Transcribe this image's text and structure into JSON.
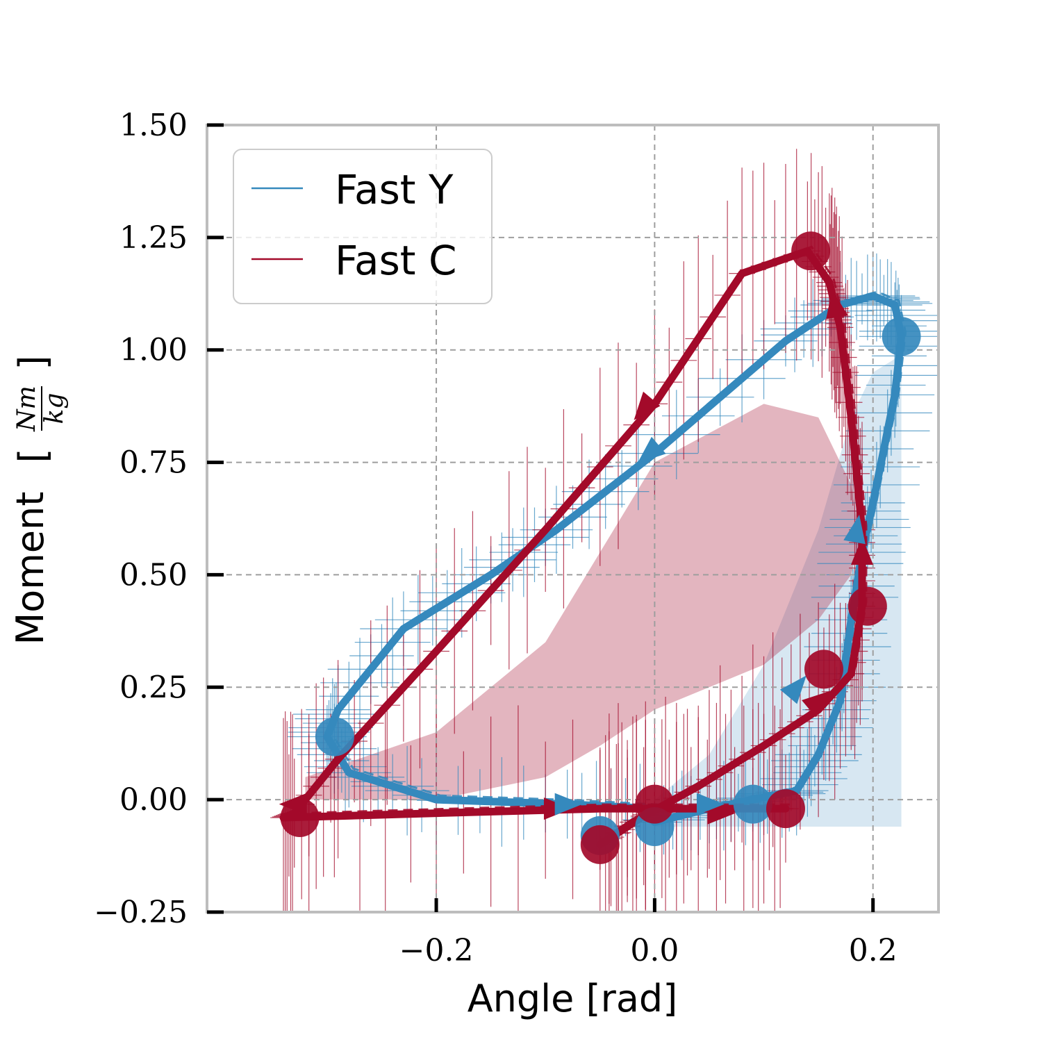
{
  "chart_data": {
    "type": "line",
    "xlabel": "Angle [rad]",
    "ylabel_main": "Moment",
    "ylabel_fraction_num": "Nm",
    "ylabel_fraction_den": "kg",
    "xlim": [
      -0.41,
      0.26
    ],
    "ylim": [
      -0.25,
      1.5
    ],
    "x_ticks": [
      -0.2,
      0.0,
      0.2
    ],
    "x_tick_labels": [
      "−0.2",
      "0.0",
      "0.2"
    ],
    "y_ticks": [
      -0.25,
      0.0,
      0.25,
      0.5,
      0.75,
      1.0,
      1.25,
      1.5
    ],
    "y_tick_labels": [
      "−0.25",
      "0.00",
      "0.25",
      "0.50",
      "0.75",
      "1.00",
      "1.25",
      "1.50"
    ],
    "grid": true,
    "legend_position": "upper-left",
    "series": [
      {
        "name": "Fast Y",
        "color": "#3589bd",
        "x": [
          0.0,
          0.05,
          0.09,
          0.13,
          0.15,
          0.17,
          0.18,
          0.19,
          0.2,
          0.22,
          0.226,
          0.22,
          0.2,
          0.17,
          0.12,
          0.0,
          -0.09,
          -0.15,
          -0.23,
          -0.29,
          -0.3,
          -0.28,
          -0.2,
          -0.08,
          0.0
        ],
        "y": [
          -0.05,
          -0.02,
          0.0,
          0.02,
          0.1,
          0.22,
          0.4,
          0.55,
          0.66,
          0.9,
          1.03,
          1.1,
          1.12,
          1.1,
          1.02,
          0.77,
          0.6,
          0.5,
          0.38,
          0.2,
          0.14,
          0.06,
          0.0,
          -0.01,
          -0.02
        ],
        "shade_top": [
          0.0,
          0.1,
          0.3,
          0.6,
          0.85,
          0.95,
          0.98,
          1.0
        ],
        "shade_bottom": [
          -0.06,
          -0.06,
          -0.06,
          -0.06,
          -0.06,
          -0.06,
          -0.06,
          -0.06
        ],
        "shade_x": [
          0.0,
          0.05,
          0.1,
          0.15,
          0.18,
          0.2,
          0.22,
          0.226
        ]
      },
      {
        "name": "Fast C",
        "color": "#a30a2a",
        "x": [
          0.12,
          0.09,
          0.04,
          0.0,
          -0.05,
          -0.02,
          0.04,
          0.1,
          0.15,
          0.18,
          0.19,
          0.19,
          0.18,
          0.17,
          0.165,
          0.16,
          0.14,
          0.08,
          0.0,
          -0.1,
          -0.2,
          -0.29,
          -0.33,
          -0.34,
          -0.2,
          -0.05,
          0.0
        ],
        "y": [
          -0.02,
          -0.02,
          -0.02,
          -0.02,
          -0.1,
          -0.05,
          0.03,
          0.12,
          0.2,
          0.28,
          0.43,
          0.6,
          0.85,
          1.05,
          1.1,
          1.15,
          1.22,
          1.17,
          0.88,
          0.6,
          0.33,
          0.09,
          -0.03,
          -0.04,
          -0.03,
          -0.02,
          -0.02
        ],
        "shade_top": [
          0.05,
          0.15,
          0.35,
          0.55,
          0.75,
          0.88,
          0.85,
          0.7,
          0.55,
          0.4
        ],
        "shade_bottom": [
          0.0,
          0.0,
          0.05,
          0.12,
          0.2,
          0.3,
          0.4,
          0.5,
          0.6,
          0.75
        ],
        "shade_x": [
          -0.32,
          -0.2,
          -0.1,
          -0.05,
          0.0,
          0.1,
          0.15,
          0.18,
          0.19,
          0.19
        ]
      }
    ],
    "markers": [
      {
        "series": 0,
        "x": -0.293,
        "y": 0.14
      },
      {
        "series": 0,
        "x": 0.226,
        "y": 1.03
      },
      {
        "series": 0,
        "x": 0.0,
        "y": -0.06
      },
      {
        "series": 0,
        "x": -0.05,
        "y": -0.08
      },
      {
        "series": 0,
        "x": 0.09,
        "y": -0.01
      },
      {
        "series": 1,
        "x": -0.325,
        "y": -0.04
      },
      {
        "series": 1,
        "x": 0.143,
        "y": 1.22
      },
      {
        "series": 1,
        "x": 0.195,
        "y": 0.43
      },
      {
        "series": 1,
        "x": 0.12,
        "y": -0.02
      },
      {
        "series": 1,
        "x": -0.05,
        "y": -0.1
      },
      {
        "series": 1,
        "x": 0.0,
        "y": -0.01
      },
      {
        "series": 1,
        "x": 0.155,
        "y": 0.29
      }
    ],
    "arrows": [
      {
        "series": 1,
        "x": -0.33,
        "y": -0.01,
        "angle": 180
      },
      {
        "series": 1,
        "x": -0.09,
        "y": -0.02,
        "angle": 0
      },
      {
        "series": 1,
        "x": 0.15,
        "y": 0.22,
        "angle": -40
      },
      {
        "series": 1,
        "x": 0.19,
        "y": 0.55,
        "angle": -90
      },
      {
        "series": 1,
        "x": 0.165,
        "y": 1.1,
        "angle": -100
      },
      {
        "series": 1,
        "x": -0.01,
        "y": 0.87,
        "angle": 130
      },
      {
        "series": 1,
        "x": 0.06,
        "y": -0.03,
        "angle": 0
      },
      {
        "series": 0,
        "x": -0.08,
        "y": -0.01,
        "angle": 0
      },
      {
        "series": 0,
        "x": 0.05,
        "y": -0.01,
        "angle": 0
      },
      {
        "series": 0,
        "x": 0.13,
        "y": 0.25,
        "angle": -50
      },
      {
        "series": 0,
        "x": 0.185,
        "y": 0.6,
        "angle": -80
      },
      {
        "series": 0,
        "x": -0.005,
        "y": 0.77,
        "angle": 140
      }
    ]
  }
}
